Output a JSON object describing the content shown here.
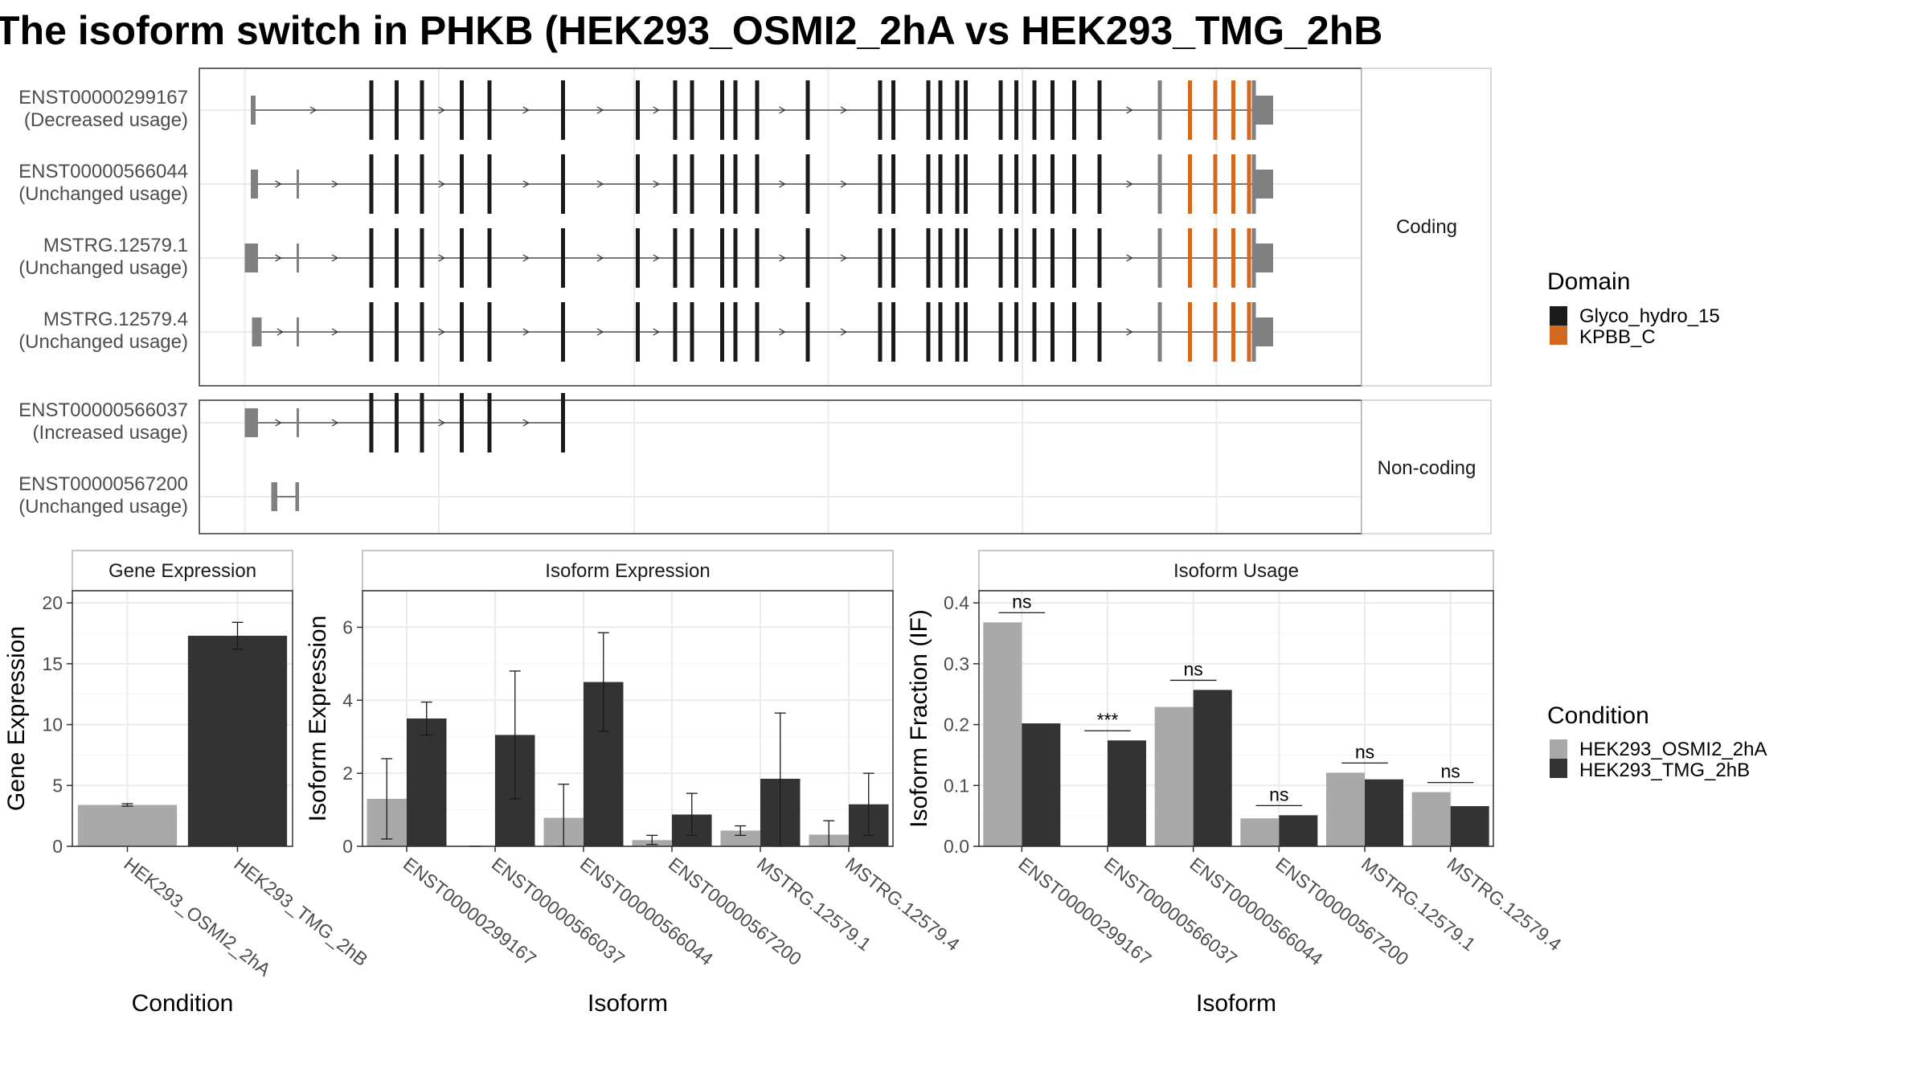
{
  "title": "The isoform switch in PHKB (HEK293_OSMI2_2hA vs HEK293_TMG_2hB",
  "structure": {
    "coding_facet_label": "Coding",
    "noncoding_facet_label": "Non-coding",
    "transcripts": [
      {
        "id": "ENST00000299167",
        "usage": "(Decreased usage)",
        "group": "coding",
        "utr5": [
          [
            208,
            212
          ]
        ],
        "exons": [
          308,
          329,
          350,
          383,
          406,
          467,
          529,
          560,
          574,
          599,
          610,
          628,
          670,
          730,
          741,
          770,
          780,
          794,
          801,
          830,
          843,
          858,
          873,
          891,
          912
        ],
        "domain_exons": [
          987,
          1008,
          1023,
          1036
        ],
        "gray_exons": [
          962,
          1040
        ],
        "utr3": [
          1041,
          1056
        ]
      },
      {
        "id": "ENST00000566044",
        "usage": "(Unchanged usage)",
        "group": "coding",
        "utr5": [
          [
            208,
            214
          ],
          [
            246,
            248
          ]
        ],
        "exons": [
          308,
          329,
          350,
          383,
          406,
          467,
          529,
          560,
          574,
          599,
          610,
          628,
          670,
          730,
          741,
          770,
          780,
          794,
          801,
          830,
          843,
          858,
          873,
          891,
          912
        ],
        "domain_exons": [
          987,
          1008,
          1023,
          1036
        ],
        "gray_exons": [
          962,
          1040
        ],
        "utr3": [
          1041,
          1056
        ]
      },
      {
        "id": "MSTRG.12579.1",
        "usage": "(Unchanged usage)",
        "group": "coding",
        "utr5": [
          [
            203,
            214
          ],
          [
            246,
            248
          ]
        ],
        "exons": [
          308,
          329,
          350,
          383,
          406,
          467,
          529,
          560,
          574,
          599,
          610,
          628,
          670,
          730,
          741,
          770,
          780,
          794,
          801,
          830,
          843,
          858,
          873,
          891,
          912
        ],
        "domain_exons": [
          987,
          1008,
          1023,
          1036
        ],
        "gray_exons": [
          962,
          1040
        ],
        "utr3": [
          1041,
          1056
        ]
      },
      {
        "id": "MSTRG.12579.4",
        "usage": "(Unchanged usage)",
        "group": "coding",
        "utr5": [
          [
            209,
            217
          ],
          [
            246,
            248
          ]
        ],
        "exons": [
          308,
          329,
          350,
          383,
          406,
          467,
          529,
          560,
          574,
          599,
          610,
          628,
          670,
          730,
          741,
          770,
          780,
          794,
          801,
          830,
          843,
          858,
          873,
          891,
          912
        ],
        "domain_exons": [
          987,
          1008,
          1023,
          1036
        ],
        "gray_exons": [
          962,
          1040
        ],
        "utr3": [
          1041,
          1056
        ]
      },
      {
        "id": "ENST00000566037",
        "usage": "(Increased usage)",
        "group": "noncoding",
        "utr5": [
          [
            203,
            214
          ],
          [
            246,
            248
          ]
        ],
        "exons": [
          308,
          329,
          350,
          383,
          406,
          467
        ],
        "domain_exons": [],
        "gray_exons": [],
        "utr3": null
      },
      {
        "id": "ENST00000567200",
        "usage": "(Unchanged usage)",
        "group": "noncoding",
        "utr5": [
          [
            225,
            230
          ],
          [
            245,
            248
          ]
        ],
        "exons": [],
        "domain_exons": [],
        "gray_exons": [],
        "utr3": null
      }
    ]
  },
  "legend_domain": {
    "title": "Domain",
    "items": [
      {
        "label": "Glyco_hydro_15",
        "color": "#1a1a1a"
      },
      {
        "label": "KPBB_C",
        "color": "#d2691e"
      }
    ]
  },
  "legend_condition": {
    "title": "Condition",
    "items": [
      {
        "label": "HEK293_OSMI2_2hA",
        "color": "#a9a9a9"
      },
      {
        "label": "HEK293_TMG_2hB",
        "color": "#333333"
      }
    ]
  },
  "chart_data": [
    {
      "type": "bar",
      "title": "Gene Expression",
      "xlabel": "Condition",
      "ylabel": "Gene Expression",
      "categories": [
        "HEK293_OSMI2_2hA",
        "HEK293_TMG_2hB"
      ],
      "values": [
        3.4,
        17.3
      ],
      "error": [
        [
          3.3,
          3.5
        ],
        [
          16.2,
          18.4
        ]
      ],
      "colors": [
        "#a9a9a9",
        "#333333"
      ],
      "ylim": [
        0,
        21
      ],
      "yticks": [
        0,
        5,
        10,
        15,
        20
      ]
    },
    {
      "type": "bar",
      "title": "Isoform Expression",
      "xlabel": "Isoform",
      "ylabel": "Isoform Expression",
      "categories": [
        "ENST00000299167",
        "ENST00000566037",
        "ENST00000566044",
        "ENST00000567200",
        "MSTRG.12579.1",
        "MSTRG.12579.4"
      ],
      "series": [
        {
          "name": "HEK293_OSMI2_2hA",
          "values": [
            1.3,
            0.0,
            0.78,
            0.17,
            0.43,
            0.32
          ],
          "error": [
            [
              0.2,
              2.4
            ],
            [
              0.0,
              0.0
            ],
            [
              0.0,
              1.7
            ],
            [
              0.05,
              0.3
            ],
            [
              0.3,
              0.56
            ],
            [
              0.0,
              0.7
            ]
          ]
        },
        {
          "name": "HEK293_TMG_2hB",
          "values": [
            3.5,
            3.05,
            4.5,
            0.87,
            1.85,
            1.15
          ],
          "error": [
            [
              3.05,
              3.95
            ],
            [
              1.3,
              4.8
            ],
            [
              3.15,
              5.85
            ],
            [
              0.3,
              1.45
            ],
            [
              0.0,
              3.65
            ],
            [
              0.3,
              2.0
            ]
          ]
        }
      ],
      "ylim": [
        0,
        7
      ],
      "yticks": [
        0,
        2,
        4,
        6
      ]
    },
    {
      "type": "bar",
      "title": "Isoform Usage",
      "xlabel": "Isoform",
      "ylabel": "Isoform Fraction (IF)",
      "categories": [
        "ENST00000299167",
        "ENST00000566037",
        "ENST00000566044",
        "ENST00000567200",
        "MSTRG.12579.1",
        "MSTRG.12579.4"
      ],
      "series": [
        {
          "name": "HEK293_OSMI2_2hA",
          "values": [
            0.368,
            0.0,
            0.229,
            0.046,
            0.121,
            0.089
          ]
        },
        {
          "name": "HEK293_TMG_2hB",
          "values": [
            0.202,
            0.174,
            0.257,
            0.051,
            0.11,
            0.066
          ]
        }
      ],
      "significance": [
        "ns",
        "***",
        "ns",
        "ns",
        "ns",
        "ns"
      ],
      "ylim": [
        0,
        0.42
      ],
      "yticks": [
        0.0,
        0.1,
        0.2,
        0.3,
        0.4
      ],
      "ytick_labels": [
        "0.0",
        "0.1",
        "0.2",
        "0.3",
        "0.4"
      ]
    }
  ]
}
